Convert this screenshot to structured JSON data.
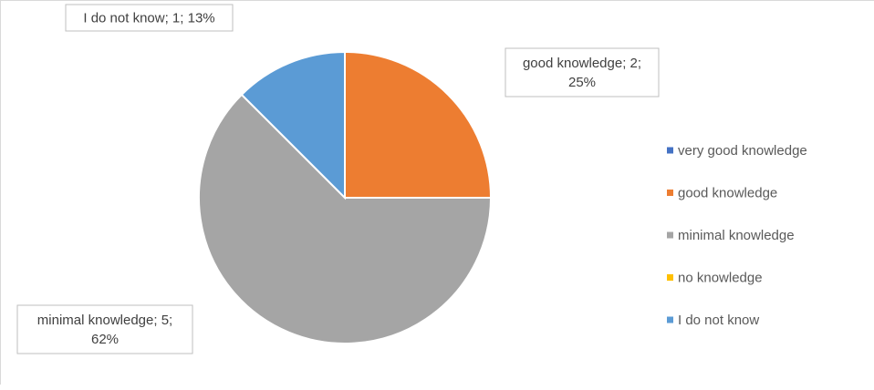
{
  "chart_data": {
    "type": "pie",
    "title": "",
    "start_angle_deg": 0,
    "direction": "clockwise",
    "slices": [
      {
        "label": "very good knowledge",
        "value": 0,
        "percent": 0,
        "color": "#4472C4",
        "data_label": ""
      },
      {
        "label": "good knowledge",
        "value": 2,
        "percent": 25,
        "color": "#ED7D31",
        "data_label": "good knowledge; 2;\n25%"
      },
      {
        "label": "minimal knowledge",
        "value": 5,
        "percent": 62,
        "color": "#A5A5A5",
        "data_label": "minimal knowledge; 5;\n62%"
      },
      {
        "label": "no knowledge",
        "value": 0,
        "percent": 0,
        "color": "#FFC000",
        "data_label": ""
      },
      {
        "label": "I do not know",
        "value": 1,
        "percent": 13,
        "color": "#5B9BD5",
        "data_label": "I do not know; 1; 13%"
      }
    ],
    "legend": {
      "placement": "right",
      "entries": [
        {
          "label": "very good knowledge",
          "color": "#4472C4"
        },
        {
          "label": "good knowledge",
          "color": "#ED7D31"
        },
        {
          "label": "minimal knowledge",
          "color": "#A5A5A5"
        },
        {
          "label": "no knowledge",
          "color": "#FFC000"
        },
        {
          "label": "I do not know",
          "color": "#5B9BD5"
        }
      ]
    }
  }
}
